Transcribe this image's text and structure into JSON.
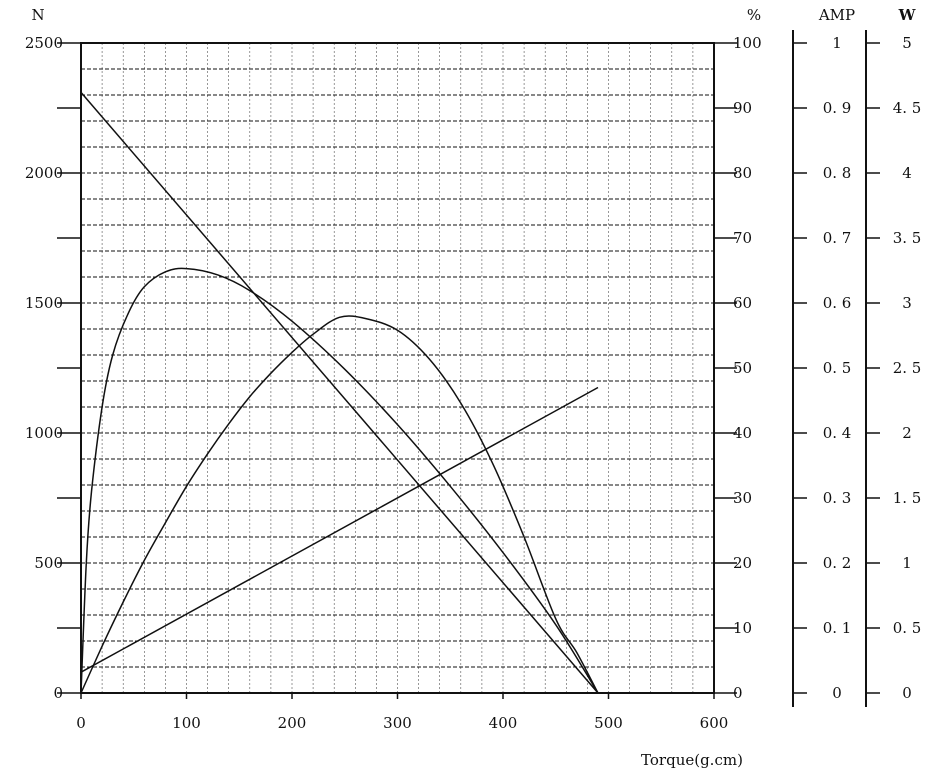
{
  "chart_data": {
    "type": "line",
    "xlabel": "Torque(g.cm)",
    "xlim": [
      0,
      600
    ],
    "x_ticks": [
      0,
      100,
      200,
      300,
      400,
      500,
      600
    ],
    "x_ticks_text": [
      "0",
      "100",
      "200",
      "300",
      "400",
      "500",
      "600"
    ],
    "x_grid_step": 20,
    "grid": true,
    "axes": {
      "N": {
        "label": "N",
        "lim": [
          0,
          2500
        ],
        "ticks": [
          0,
          250,
          500,
          750,
          1000,
          1250,
          1500,
          1750,
          2000,
          2250,
          2500
        ],
        "tick_labels": [
          "0",
          "",
          "500",
          "",
          "1000",
          "",
          "1500",
          "",
          "2000",
          "",
          "2500"
        ]
      },
      "pct": {
        "label": "%",
        "lim": [
          0,
          100
        ],
        "ticks": [
          0,
          10,
          20,
          30,
          40,
          50,
          60,
          70,
          80,
          90,
          100
        ],
        "tick_labels": [
          "0",
          "10",
          "20",
          "30",
          "40",
          "50",
          "60",
          "70",
          "80",
          "90",
          "100"
        ]
      },
      "AMP": {
        "label": "AMP",
        "lim": [
          0,
          1
        ],
        "ticks": [
          0,
          0.1,
          0.2,
          0.3,
          0.4,
          0.5,
          0.6,
          0.7,
          0.8,
          0.9,
          1
        ],
        "tick_labels": [
          "0",
          "0. 1",
          "0. 2",
          "0. 3",
          "0. 4",
          "0. 5",
          "0. 6",
          "0. 7",
          "0. 8",
          "0. 9",
          "1"
        ]
      },
      "W": {
        "label": "W",
        "lim": [
          0,
          5
        ],
        "ticks": [
          0,
          0.5,
          1,
          1.5,
          2,
          2.5,
          3,
          3.5,
          4,
          4.5,
          5
        ],
        "tick_labels": [
          "0",
          "0. 5",
          "1",
          "1. 5",
          "2",
          "2. 5",
          "3",
          "3. 5",
          "4",
          "4. 5",
          "5"
        ]
      }
    },
    "series": [
      {
        "axis": "N",
        "x": [
          0,
          490
        ],
        "y": [
          2310,
          0
        ]
      },
      {
        "axis": "AMP",
        "x": [
          0,
          490
        ],
        "y": [
          0.032,
          0.47
        ]
      },
      {
        "axis": "pct",
        "x": [
          0,
          5,
          10,
          20,
          30,
          45,
          60,
          80,
          100,
          130,
          160,
          200,
          250,
          300,
          350,
          400,
          450,
          490
        ],
        "y": [
          0,
          20,
          31,
          44,
          52,
          58.5,
          62.5,
          64.8,
          65.3,
          64.3,
          61.9,
          57.2,
          49.8,
          41.3,
          31.8,
          21.6,
          10.5,
          0
        ]
      },
      {
        "axis": "W",
        "x": [
          0,
          20,
          40,
          60,
          80,
          100,
          120,
          140,
          160,
          180,
          200,
          220,
          245,
          270,
          300,
          330,
          360,
          390,
          420,
          450,
          470,
          490
        ],
        "y": [
          0,
          0.36,
          0.7,
          1.02,
          1.31,
          1.59,
          1.84,
          2.07,
          2.28,
          2.46,
          2.62,
          2.76,
          2.89,
          2.88,
          2.79,
          2.57,
          2.23,
          1.77,
          1.2,
          0.57,
          0.31,
          0
        ]
      }
    ]
  }
}
